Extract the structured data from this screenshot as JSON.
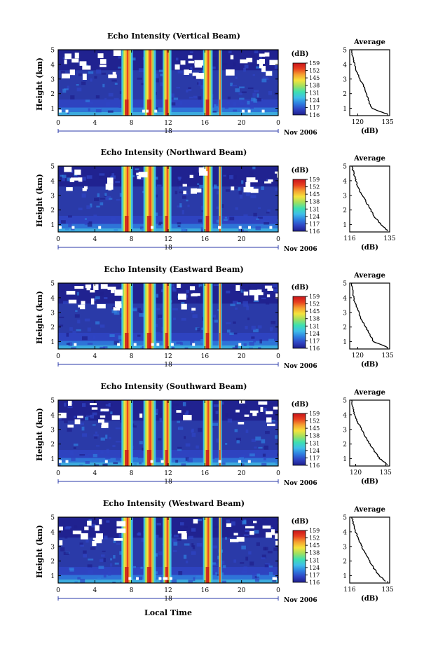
{
  "figure": {
    "xlabel": "Local Time",
    "date_label": "Nov 2006",
    "day_label": "18",
    "colorbar_unit": "(dB)",
    "colorbar_ticks": [
      "116",
      "117",
      "124",
      "131",
      "138",
      "145",
      "152",
      "159"
    ],
    "colorbar_colors": [
      "#1f1f8c",
      "#2f45c4",
      "#2f7fe0",
      "#3fbfe8",
      "#3ee0b0",
      "#9fe060",
      "#f5e33c",
      "#f5a030",
      "#e84020",
      "#c8141a"
    ],
    "ytick_labels": [
      "1",
      "2",
      "3",
      "4",
      "5"
    ],
    "xtick_labels": [
      "0",
      "4",
      "8",
      "12",
      "16",
      "20",
      "0"
    ],
    "average_title": "Average",
    "average_xlabel": "(dB)",
    "ylabel": "Height (km)"
  },
  "chart_data": [
    {
      "type": "heatmap",
      "title": "Echo Intensity (Vertical Beam)",
      "xlabel": "",
      "ylabel": "Height (km)",
      "x_range_hours": [
        0,
        24
      ],
      "ylim": [
        0.5,
        5
      ],
      "colorbar_range_dB": [
        116,
        159
      ],
      "strong_echo_bands_hours": [
        [
          6.9,
          8.1
        ],
        [
          9.3,
          10.6
        ],
        [
          11.4,
          12.3
        ],
        [
          15.8,
          16.8
        ],
        [
          17.5,
          17.8
        ]
      ],
      "average_profile": {
        "xlim": [
          116,
          136
        ],
        "xticks": [
          "120",
          "135"
        ],
        "height_km": [
          0.6,
          1.0,
          1.5,
          2.0,
          2.5,
          3.0,
          3.5,
          4.0,
          4.5,
          5.0
        ],
        "intensity_dB": [
          135,
          127,
          125.5,
          124.5,
          123,
          121,
          119.5,
          118.5,
          117.5,
          117
        ]
      }
    },
    {
      "type": "heatmap",
      "title": "Echo Intensity (Northward Beam)",
      "xlabel": "",
      "ylabel": "Height (km)",
      "x_range_hours": [
        0,
        24
      ],
      "ylim": [
        0.5,
        5
      ],
      "colorbar_range_dB": [
        116,
        159
      ],
      "strong_echo_bands_hours": [
        [
          6.9,
          8.1
        ],
        [
          9.3,
          10.6
        ],
        [
          11.4,
          12.3
        ],
        [
          15.8,
          16.8
        ],
        [
          17.5,
          17.8
        ]
      ],
      "average_profile": {
        "xlim": [
          116,
          135
        ],
        "xticks": [
          "116",
          "135"
        ],
        "height_km": [
          0.6,
          1.0,
          1.5,
          2.0,
          2.5,
          3.0,
          3.5,
          4.0,
          4.5,
          5.0
        ],
        "intensity_dB": [
          134,
          131,
          128,
          126,
          124,
          122,
          120,
          119,
          118,
          117
        ]
      }
    },
    {
      "type": "heatmap",
      "title": "Echo Intensity (Eastward Beam)",
      "xlabel": "",
      "ylabel": "Height (km)",
      "x_range_hours": [
        0,
        24
      ],
      "ylim": [
        0.5,
        5
      ],
      "colorbar_range_dB": [
        116,
        159
      ],
      "strong_echo_bands_hours": [
        [
          6.9,
          8.1
        ],
        [
          9.3,
          10.6
        ],
        [
          11.4,
          12.3
        ],
        [
          15.8,
          16.8
        ],
        [
          17.5,
          17.8
        ]
      ],
      "average_profile": {
        "xlim": [
          116,
          136
        ],
        "xticks": [
          "120",
          "135"
        ],
        "height_km": [
          0.6,
          1.0,
          1.5,
          2.0,
          2.5,
          3.0,
          3.5,
          4.0,
          4.5,
          5.0
        ],
        "intensity_dB": [
          135,
          128,
          126,
          124,
          122,
          120.5,
          119,
          118,
          117.5,
          117
        ]
      }
    },
    {
      "type": "heatmap",
      "title": "Echo Intensity (Southward Beam)",
      "xlabel": "",
      "ylabel": "Height (km)",
      "x_range_hours": [
        0,
        24
      ],
      "ylim": [
        0.5,
        5
      ],
      "colorbar_range_dB": [
        116,
        159
      ],
      "strong_echo_bands_hours": [
        [
          6.9,
          8.1
        ],
        [
          9.3,
          10.6
        ],
        [
          11.4,
          12.3
        ],
        [
          15.8,
          16.8
        ],
        [
          17.5,
          17.8
        ]
      ],
      "average_profile": {
        "xlim": [
          117,
          137
        ],
        "xticks": [
          "120",
          "135"
        ],
        "height_km": [
          0.6,
          1.0,
          1.5,
          2.0,
          2.5,
          3.0,
          3.5,
          4.0,
          4.5,
          5.0
        ],
        "intensity_dB": [
          136,
          132,
          129.5,
          127,
          125,
          123,
          121,
          119.5,
          118.5,
          118
        ]
      }
    },
    {
      "type": "heatmap",
      "title": "Echo Intensity (Westward Beam)",
      "xlabel": "Local Time",
      "ylabel": "Height (km)",
      "x_range_hours": [
        0,
        24
      ],
      "ylim": [
        0.5,
        5
      ],
      "colorbar_range_dB": [
        116,
        159
      ],
      "strong_echo_bands_hours": [
        [
          6.9,
          8.1
        ],
        [
          9.3,
          10.6
        ],
        [
          11.4,
          12.3
        ],
        [
          15.8,
          16.8
        ],
        [
          17.5,
          17.8
        ]
      ],
      "average_profile": {
        "xlim": [
          116,
          136
        ],
        "xticks": [
          "116",
          "135"
        ],
        "height_km": [
          0.6,
          1.0,
          1.5,
          2.0,
          2.5,
          3.0,
          3.5,
          4.0,
          4.5,
          5.0
        ],
        "intensity_dB": [
          134,
          131,
          128,
          126,
          124,
          122,
          120.5,
          119,
          118,
          117
        ]
      }
    }
  ]
}
